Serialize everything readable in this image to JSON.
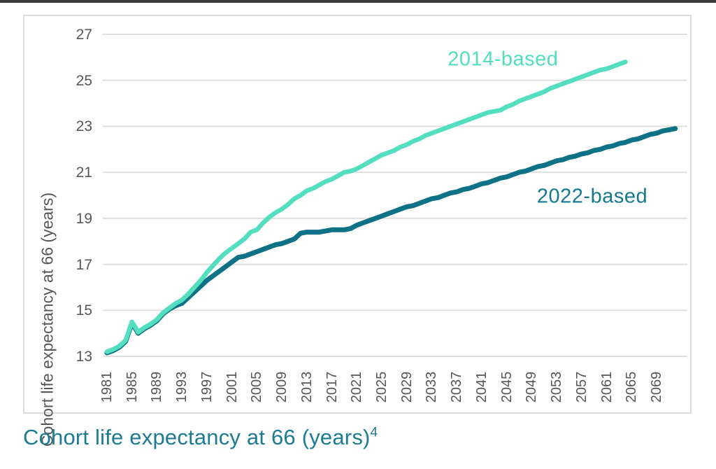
{
  "page": {
    "top_bar_color": "#3a3a3a",
    "background_color": "#ffffff"
  },
  "caption": {
    "text": "Cohort life expectancy at 66 (years)",
    "superscript": "4",
    "color": "#1d7c93"
  },
  "chart_data": {
    "type": "line",
    "title": "",
    "xlabel": "",
    "ylabel": "Cohort life expectancy at 66 (years)",
    "ylim": [
      13,
      27
    ],
    "xlim": [
      1979,
      2074
    ],
    "y_ticks": [
      27,
      25,
      23,
      21,
      19,
      17,
      15,
      13
    ],
    "x_ticks": [
      1981,
      1985,
      1989,
      1993,
      1997,
      2001,
      2005,
      2009,
      2013,
      2017,
      2021,
      2025,
      2029,
      2033,
      2037,
      2041,
      2045,
      2049,
      2053,
      2057,
      2061,
      2065,
      2069
    ],
    "grid": "horizontal",
    "grid_color": "#e0e0e0",
    "axis_text_color": "#575757",
    "legend_position": "inline-labels",
    "series": [
      {
        "name": "2022-based",
        "color": "#0e7287",
        "label_color": "#14798e",
        "label_year": 2058.7,
        "label_value": 19.95,
        "start_year": 1981,
        "end_year": 2072,
        "values": [
          13.15,
          13.25,
          13.4,
          13.65,
          14.45,
          14.0,
          14.2,
          14.35,
          14.55,
          14.85,
          15.05,
          15.2,
          15.3,
          15.55,
          15.8,
          16.05,
          16.3,
          16.5,
          16.7,
          16.9,
          17.1,
          17.3,
          17.35,
          17.45,
          17.55,
          17.65,
          17.75,
          17.85,
          17.9,
          18.0,
          18.1,
          18.35,
          18.4,
          18.4,
          18.4,
          18.45,
          18.5,
          18.5,
          18.5,
          18.55,
          18.7,
          18.8,
          18.9,
          19.0,
          19.1,
          19.2,
          19.3,
          19.4,
          19.5,
          19.55,
          19.65,
          19.75,
          19.85,
          19.9,
          20.0,
          20.1,
          20.15,
          20.25,
          20.3,
          20.4,
          20.5,
          20.55,
          20.65,
          20.75,
          20.8,
          20.9,
          21.0,
          21.05,
          21.15,
          21.25,
          21.3,
          21.4,
          21.5,
          21.55,
          21.65,
          21.7,
          21.8,
          21.85,
          21.95,
          22.0,
          22.1,
          22.15,
          22.25,
          22.3,
          22.4,
          22.45,
          22.55,
          22.65,
          22.7,
          22.8,
          22.85,
          22.9
        ]
      },
      {
        "name": "2014-based",
        "color": "#52debf",
        "label_color": "#52debf",
        "label_year": 2044.4,
        "label_value": 25.9,
        "start_year": 1981,
        "end_year": 2064,
        "values": [
          13.2,
          13.3,
          13.45,
          13.7,
          14.5,
          14.05,
          14.25,
          14.4,
          14.6,
          14.9,
          15.1,
          15.3,
          15.45,
          15.7,
          16.0,
          16.3,
          16.65,
          16.95,
          17.25,
          17.5,
          17.7,
          17.9,
          18.1,
          18.4,
          18.5,
          18.8,
          19.05,
          19.25,
          19.4,
          19.6,
          19.85,
          20.0,
          20.2,
          20.3,
          20.45,
          20.6,
          20.7,
          20.85,
          21.0,
          21.05,
          21.15,
          21.3,
          21.45,
          21.6,
          21.75,
          21.85,
          21.95,
          22.1,
          22.2,
          22.35,
          22.45,
          22.6,
          22.7,
          22.8,
          22.9,
          23.0,
          23.1,
          23.2,
          23.3,
          23.4,
          23.5,
          23.6,
          23.65,
          23.7,
          23.85,
          23.95,
          24.1,
          24.2,
          24.3,
          24.4,
          24.5,
          24.65,
          24.75,
          24.85,
          24.95,
          25.05,
          25.15,
          25.25,
          25.35,
          25.45,
          25.5,
          25.6,
          25.7,
          25.8
        ]
      }
    ]
  }
}
